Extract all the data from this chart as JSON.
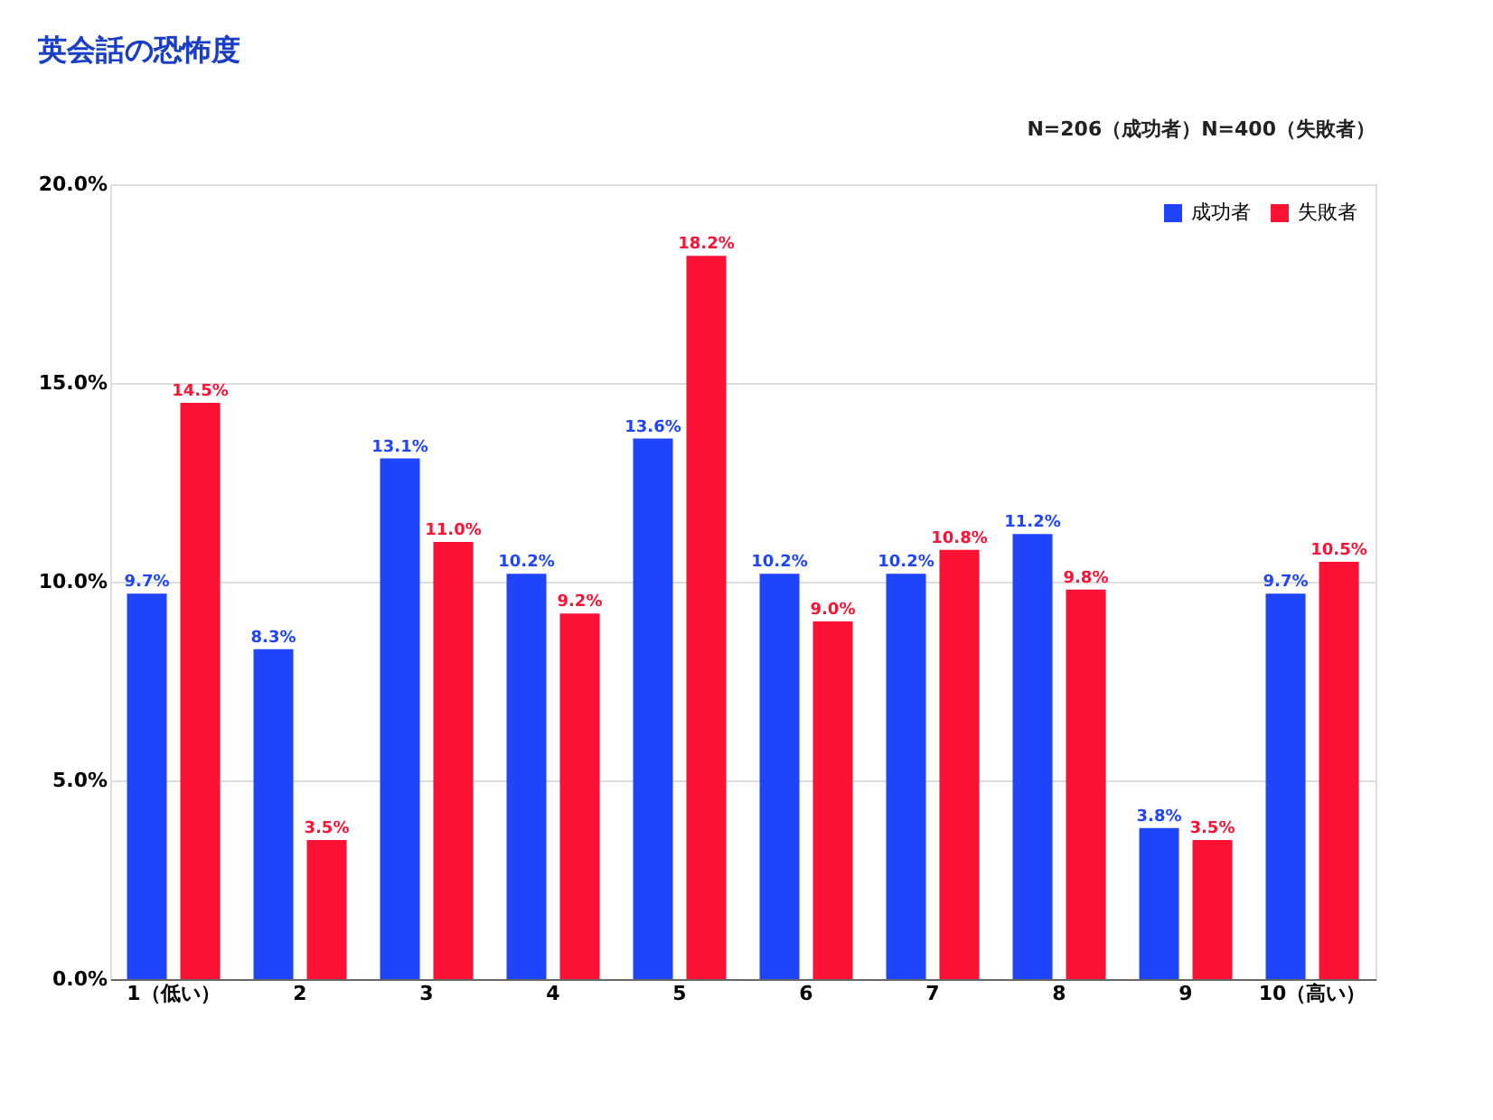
{
  "chart_data": {
    "type": "bar",
    "title": "英会話の恐怖度",
    "subtitle": "N=206（成功者）N=400（失敗者）",
    "categories": [
      "1（低い）",
      "2",
      "3",
      "4",
      "5",
      "6",
      "7",
      "8",
      "9",
      "10（高い）"
    ],
    "series": [
      {
        "name": "成功者",
        "color": "#1f45fc",
        "values": [
          9.7,
          8.3,
          13.1,
          10.2,
          13.6,
          10.2,
          10.2,
          11.2,
          3.8,
          9.7
        ],
        "value_labels": [
          "9.7%",
          "8.3%",
          "13.1%",
          "10.2%",
          "13.6%",
          "10.2%",
          "10.2%",
          "11.2%",
          "3.8%",
          "9.7%"
        ]
      },
      {
        "name": "失敗者",
        "color": "#fc1234",
        "values": [
          14.5,
          3.5,
          11.0,
          9.2,
          18.2,
          9.0,
          10.8,
          9.8,
          3.5,
          10.5
        ],
        "value_labels": [
          "14.5%",
          "3.5%",
          "11.0%",
          "9.2%",
          "18.2%",
          "9.0%",
          "10.8%",
          "9.8%",
          "3.5%",
          "10.5%"
        ]
      }
    ],
    "ylim": [
      0,
      20
    ],
    "yticks": [
      {
        "value": 0,
        "label": "0.0%"
      },
      {
        "value": 5,
        "label": "5.0%"
      },
      {
        "value": 10,
        "label": "10.0%"
      },
      {
        "value": 15,
        "label": "15.0%"
      },
      {
        "value": 20,
        "label": "20.0%"
      }
    ],
    "grid": "y",
    "legend": "top right"
  }
}
